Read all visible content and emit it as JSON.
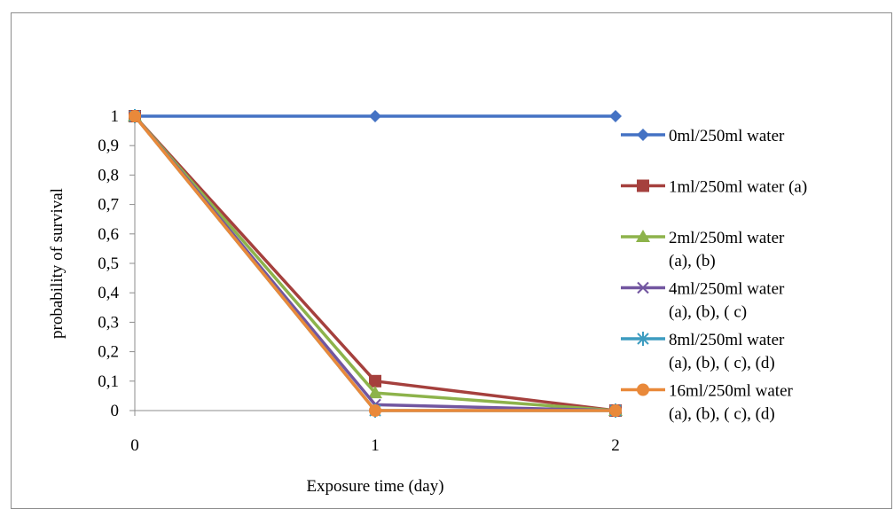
{
  "chart_data": {
    "type": "line",
    "title": "",
    "xlabel": "Exposure time (day)",
    "ylabel": "probability of survival",
    "x": [
      0,
      1,
      2
    ],
    "x_tick_labels": [
      "0",
      "1",
      "2"
    ],
    "ylim": [
      0,
      1
    ],
    "y_tick_labels": [
      "0",
      "0,1",
      "0,2",
      "0,3",
      "0,4",
      "0,5",
      "0,6",
      "0,7",
      "0,8",
      "0,9",
      "1"
    ],
    "grid": false,
    "legend_position": "right",
    "series": [
      {
        "name": "0ml/250ml water",
        "name_lines": [
          "0ml/250ml water"
        ],
        "values": [
          1,
          1,
          1
        ],
        "color": "#4472C4",
        "marker": "diamond"
      },
      {
        "name": "1ml/250ml water (a)",
        "name_lines": [
          "1ml/250ml water (a)"
        ],
        "values": [
          1,
          0.1,
          0
        ],
        "color": "#A5403D",
        "marker": "square"
      },
      {
        "name": "2ml/250ml water (a), (b)",
        "name_lines": [
          "2ml/250ml water",
          "(a), (b)"
        ],
        "values": [
          1,
          0.06,
          0
        ],
        "color": "#8DB34B",
        "marker": "triangle"
      },
      {
        "name": "4ml/250ml water (a), (b), ( c)",
        "name_lines": [
          "4ml/250ml water",
          "(a), (b), ( c)"
        ],
        "values": [
          1,
          0.02,
          0
        ],
        "color": "#7256A0",
        "marker": "x"
      },
      {
        "name": "8ml/250ml water (a), (b), ( c), (d)",
        "name_lines": [
          "8ml/250ml water",
          "(a), (b), ( c), (d)"
        ],
        "values": [
          1,
          0,
          0
        ],
        "color": "#3D9CC0",
        "marker": "star"
      },
      {
        "name": "16ml/250ml water (a), (b), ( c), (d)",
        "name_lines": [
          "16ml/250ml water",
          "(a), (b), ( c), (d)"
        ],
        "values": [
          1,
          0,
          0
        ],
        "color": "#E9893A",
        "marker": "circle"
      }
    ]
  }
}
